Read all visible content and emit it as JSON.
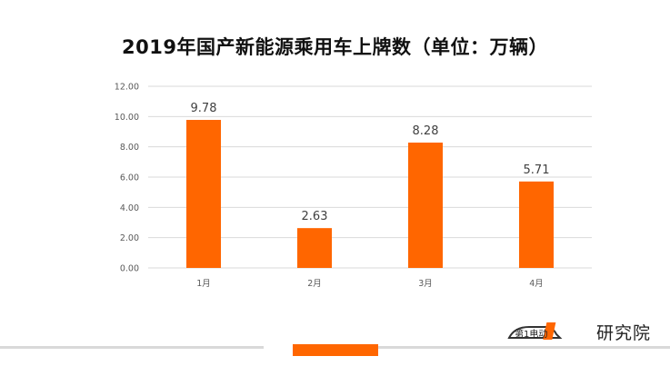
{
  "title": "2019年国产新能源乘用车上牌数（单位：万辆）",
  "colors": {
    "bar": "#ff6600",
    "accent": "#ff6600",
    "grid": "#d9d9d9"
  },
  "logo": {
    "text": "研究院",
    "mark_text": "第1电动",
    "icon": "car-logo-icon"
  },
  "chart_data": {
    "type": "bar",
    "title": "2019年国产新能源乘用车上牌数（单位：万辆）",
    "categories": [
      "1月",
      "2月",
      "3月",
      "4月"
    ],
    "values": [
      9.78,
      2.63,
      8.28,
      5.71
    ],
    "value_labels": [
      "9.78",
      "2.63",
      "8.28",
      "5.71"
    ],
    "yticks": [
      "0.00",
      "2.00",
      "4.00",
      "6.00",
      "8.00",
      "10.00",
      "12.00"
    ],
    "ylim": [
      0,
      12
    ],
    "xlabel": "",
    "ylabel": "",
    "grid": true,
    "legend": "none"
  }
}
